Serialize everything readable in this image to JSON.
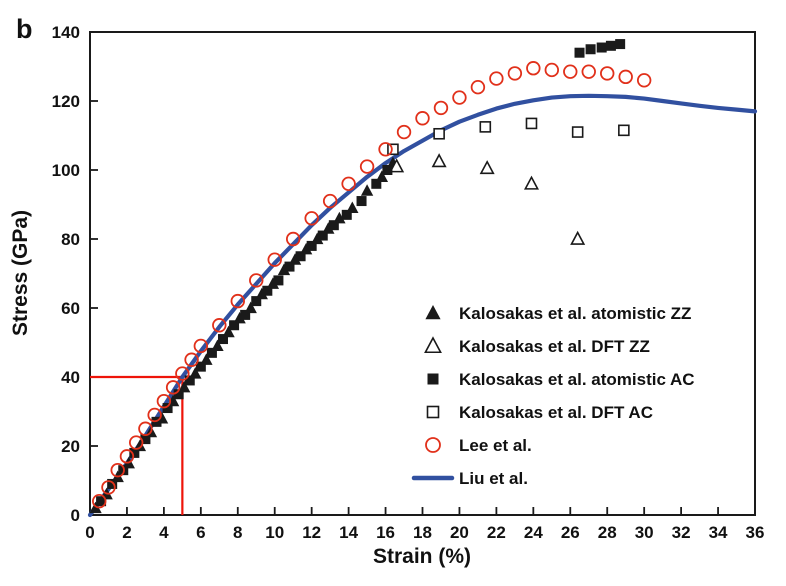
{
  "chart_data": {
    "type": "scatter",
    "panel_label": "b",
    "title": "",
    "xlabel": "Strain (%)",
    "ylabel": "Stress (GPa)",
    "xlim": [
      0,
      36
    ],
    "ylim": [
      0,
      140
    ],
    "xtick_step": 2,
    "ytick_step": 20,
    "grid": false,
    "legend_position": "center-right-inside",
    "colors": {
      "black_marker": "#1a1a1a",
      "red_marker": "#e1301a",
      "blue_line": "#3150a0",
      "guide_red": "#ee1409",
      "frame": "#1a1a1a"
    },
    "annotations": {
      "guide_lines": {
        "color": "#ee1409",
        "horizontal": {
          "y": 40,
          "x0": 0,
          "x1": 5
        },
        "vertical": {
          "x": 5,
          "y0": 0,
          "y1": 40
        }
      }
    },
    "series": [
      {
        "name": "Kalosakas et al. atomistic ZZ",
        "marker": "triangle-filled",
        "color": "#1a1a1a",
        "points": [
          [
            0.3,
            2
          ],
          [
            0.9,
            6
          ],
          [
            1.5,
            11
          ],
          [
            2.1,
            15
          ],
          [
            2.7,
            20
          ],
          [
            3.3,
            24
          ],
          [
            3.9,
            28
          ],
          [
            4.5,
            33
          ],
          [
            5.1,
            37
          ],
          [
            5.7,
            41
          ],
          [
            6.3,
            45
          ],
          [
            6.9,
            49
          ],
          [
            7.5,
            53
          ],
          [
            8.1,
            57
          ],
          [
            8.7,
            60
          ],
          [
            9.3,
            64
          ],
          [
            9.9,
            67
          ],
          [
            10.5,
            71
          ],
          [
            11.1,
            74
          ],
          [
            11.7,
            77
          ],
          [
            12.3,
            80
          ],
          [
            12.9,
            83
          ],
          [
            13.5,
            86
          ],
          [
            14.2,
            89
          ],
          [
            15.0,
            94
          ],
          [
            15.8,
            98
          ],
          [
            16.4,
            102
          ]
        ]
      },
      {
        "name": "Kalosakas et al. DFT ZZ",
        "marker": "triangle-open",
        "color": "#1a1a1a",
        "points": [
          [
            16.6,
            101
          ],
          [
            18.9,
            102.5
          ],
          [
            21.5,
            100.5
          ],
          [
            23.9,
            96
          ],
          [
            26.4,
            80
          ]
        ]
      },
      {
        "name": "Kalosakas et al. atomistic AC",
        "marker": "square-filled",
        "color": "#1a1a1a",
        "points": [
          [
            0.6,
            4
          ],
          [
            1.2,
            9
          ],
          [
            1.8,
            13
          ],
          [
            2.4,
            18
          ],
          [
            3.0,
            22
          ],
          [
            3.6,
            27
          ],
          [
            4.2,
            31
          ],
          [
            4.8,
            35
          ],
          [
            5.4,
            39
          ],
          [
            6.0,
            43
          ],
          [
            6.6,
            47
          ],
          [
            7.2,
            51
          ],
          [
            7.8,
            55
          ],
          [
            8.4,
            58
          ],
          [
            9.0,
            62
          ],
          [
            9.6,
            65
          ],
          [
            10.2,
            68
          ],
          [
            10.8,
            72
          ],
          [
            11.4,
            75
          ],
          [
            12.0,
            78
          ],
          [
            12.6,
            81
          ],
          [
            13.2,
            84
          ],
          [
            13.9,
            87
          ],
          [
            14.7,
            91
          ],
          [
            15.5,
            96
          ],
          [
            16.1,
            100
          ],
          [
            26.5,
            134
          ],
          [
            27.1,
            135
          ],
          [
            27.7,
            135.5
          ],
          [
            28.2,
            136
          ],
          [
            28.7,
            136.5
          ]
        ]
      },
      {
        "name": "Kalosakas et al. DFT AC",
        "marker": "square-open",
        "color": "#1a1a1a",
        "points": [
          [
            16.4,
            106
          ],
          [
            18.9,
            110.5
          ],
          [
            21.4,
            112.5
          ],
          [
            23.9,
            113.5
          ],
          [
            26.4,
            111
          ],
          [
            28.9,
            111.5
          ]
        ]
      },
      {
        "name": "Lee et al.",
        "marker": "circle-open",
        "color": "#e1301a",
        "points": [
          [
            0.5,
            4
          ],
          [
            1,
            8
          ],
          [
            1.5,
            13
          ],
          [
            2,
            17
          ],
          [
            2.5,
            21
          ],
          [
            3,
            25
          ],
          [
            3.5,
            29
          ],
          [
            4,
            33
          ],
          [
            4.5,
            37
          ],
          [
            5,
            41
          ],
          [
            5.5,
            45
          ],
          [
            6,
            49
          ],
          [
            7,
            55
          ],
          [
            8,
            62
          ],
          [
            9,
            68
          ],
          [
            10,
            74
          ],
          [
            11,
            80
          ],
          [
            12,
            86
          ],
          [
            13,
            91
          ],
          [
            14,
            96
          ],
          [
            15,
            101
          ],
          [
            16,
            106
          ],
          [
            17,
            111
          ],
          [
            18,
            115
          ],
          [
            19,
            118
          ],
          [
            20,
            121
          ],
          [
            21,
            124
          ],
          [
            22,
            126.5
          ],
          [
            23,
            128
          ],
          [
            24,
            129.5
          ],
          [
            25,
            129
          ],
          [
            26,
            128.5
          ],
          [
            27,
            128.5
          ],
          [
            28,
            128
          ],
          [
            29,
            127
          ],
          [
            30,
            126
          ]
        ]
      },
      {
        "name": "Liu et al.",
        "marker": "line",
        "color": "#3150a0",
        "points": [
          [
            0,
            0
          ],
          [
            1,
            7.5
          ],
          [
            2,
            15
          ],
          [
            3,
            23
          ],
          [
            4,
            31.5
          ],
          [
            5,
            40
          ],
          [
            6,
            47.5
          ],
          [
            7,
            54.5
          ],
          [
            8,
            61
          ],
          [
            9,
            67
          ],
          [
            10,
            73
          ],
          [
            11,
            78.5
          ],
          [
            12,
            84
          ],
          [
            13,
            89
          ],
          [
            14,
            93.5
          ],
          [
            15,
            98
          ],
          [
            16,
            102
          ],
          [
            17,
            105.5
          ],
          [
            18,
            108.5
          ],
          [
            19,
            111.5
          ],
          [
            20,
            114
          ],
          [
            21,
            116
          ],
          [
            22,
            117.8
          ],
          [
            23,
            119.2
          ],
          [
            24,
            120.2
          ],
          [
            25,
            121
          ],
          [
            26,
            121.4
          ],
          [
            27,
            121.5
          ],
          [
            28,
            121.4
          ],
          [
            29,
            121.2
          ],
          [
            30,
            120.7
          ],
          [
            31,
            120
          ],
          [
            32,
            119.3
          ],
          [
            33,
            118.6
          ],
          [
            34,
            118
          ],
          [
            35,
            117.5
          ],
          [
            36,
            117
          ]
        ]
      }
    ]
  }
}
